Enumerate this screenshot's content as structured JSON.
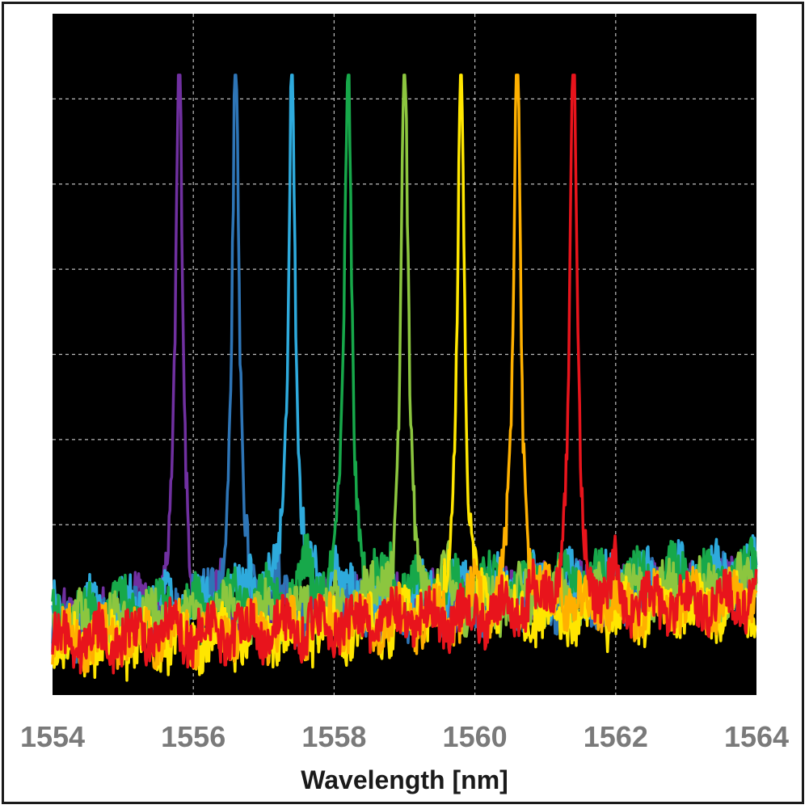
{
  "chart_data": {
    "type": "line",
    "title": "",
    "xlabel": "Wavelength [nm]",
    "ylabel": "",
    "xlim": [
      1554,
      1564
    ],
    "ylim": [
      0,
      1
    ],
    "x_ticks": [
      1554,
      1556,
      1558,
      1560,
      1562,
      1564
    ],
    "x_tick_labels": [
      "1554",
      "1556",
      "1558",
      "1560",
      "1562",
      "1564"
    ],
    "grid": true,
    "background": "#000000",
    "grid_color": "#bdbdbd",
    "series": [
      {
        "color": "#7030a0",
        "peak_wavelength": 1555.8,
        "peak_level": 0.91,
        "noise_floor": 0.1
      },
      {
        "color": "#2e75b6",
        "peak_wavelength": 1556.6,
        "peak_level": 0.91,
        "noise_floor": 0.1
      },
      {
        "color": "#2eaadc",
        "peak_wavelength": 1557.4,
        "peak_level": 0.91,
        "noise_floor": 0.12
      },
      {
        "color": "#17a84a",
        "peak_wavelength": 1558.2,
        "peak_level": 0.91,
        "noise_floor": 0.12
      },
      {
        "color": "#8cc63f",
        "peak_wavelength": 1559.0,
        "peak_level": 0.91,
        "noise_floor": 0.1
      },
      {
        "color": "#ffe600",
        "peak_wavelength": 1559.8,
        "peak_level": 0.91,
        "noise_floor": 0.07
      },
      {
        "color": "#ffb000",
        "peak_wavelength": 1560.6,
        "peak_level": 0.91,
        "noise_floor": 0.08
      },
      {
        "color": "#e8141c",
        "peak_wavelength": 1561.4,
        "peak_level": 0.91,
        "noise_floor": 0.08
      }
    ]
  }
}
